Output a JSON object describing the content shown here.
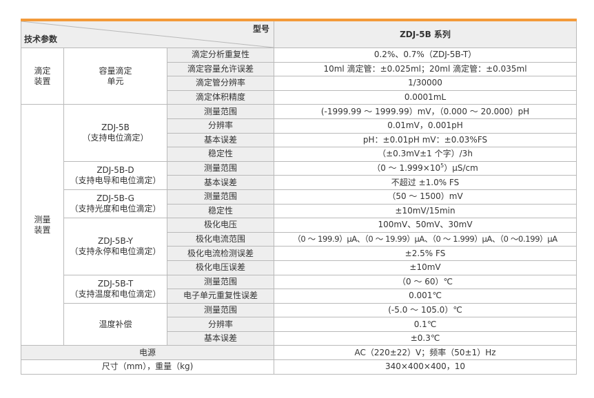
{
  "header": {
    "corner_model_label": "型号",
    "corner_param_label": "技术参数",
    "series_label": "ZDJ-5B 系列",
    "accent_color": "#f39a3a"
  },
  "sections": {
    "titration": {
      "device_line1": "滴定",
      "device_line2": "装置",
      "unit_line1": "容量滴定",
      "unit_line2": "单元",
      "rows": [
        {
          "param": "滴定分析重复性",
          "value": "0.2%、0.7%（ZDJ-5B-T）"
        },
        {
          "param": "滴定容量允许误差",
          "value": "10ml 滴定管：±0.025ml；20ml 滴定管：±0.035ml"
        },
        {
          "param": "滴定管分辨率",
          "value": "1/30000"
        },
        {
          "param": "滴定体积精度",
          "value": "0.0001mL"
        }
      ]
    },
    "measurement": {
      "device_line1": "测量",
      "device_line2": "装置",
      "zdj5b": {
        "name": "ZDJ-5B",
        "desc": "（支持电位滴定）",
        "rows": [
          {
            "param": "测量范围",
            "value": "(-1999.99 ～ 1999.99）mV，（0.000 ～ 20.000）pH"
          },
          {
            "param": "分辨率",
            "value": "0.01mV，0.001pH"
          },
          {
            "param": "基本误差",
            "value": "pH：±0.01pH   mV：±0.03%FS"
          },
          {
            "param": "稳定性",
            "value": "（±0.3mV±1 个字）/3h"
          }
        ]
      },
      "zdj5bd": {
        "name": "ZDJ-5B-D",
        "desc": "（支持电导和电位滴定）",
        "rows": [
          {
            "param": "测量范围",
            "value_pre": "（0 ～ 1.999×10",
            "value_sup": "5",
            "value_post": "）μS/cm"
          },
          {
            "param": "基本误差",
            "value": "不超过 ±1.0% FS"
          }
        ]
      },
      "zdj5bg": {
        "name": "ZDJ-5B-G",
        "desc": "（支持光度和电位滴定）",
        "rows": [
          {
            "param": "测量范围",
            "value": "（50 ～ 1500）mV"
          },
          {
            "param": "稳定性",
            "value": "±10mV/15min"
          }
        ]
      },
      "zdj5by": {
        "name": "ZDJ-5B-Y",
        "desc": "（支持永停和电位滴定）",
        "rows": [
          {
            "param": "极化电压",
            "value": "100mV、50mV、30mV"
          },
          {
            "param": "极化电流范围",
            "value": "（0 ～ 199.9）μA、（0 ～ 19.99）μA、（0 ～ 1.999）μA、（0 ～0.199）μA"
          },
          {
            "param": "极化电流检测误差",
            "value": "±2.5% FS"
          },
          {
            "param": "极化电压误差",
            "value": "±10mV"
          }
        ]
      },
      "zdj5bt": {
        "name": "ZDJ-5B-T",
        "desc": "（支持温度和电位滴定）",
        "rows": [
          {
            "param": "测量范围",
            "value": "（0 ～ 60）℃"
          },
          {
            "param": "电子单元重复性误差",
            "value": "0.001℃"
          }
        ]
      },
      "temp_comp": {
        "name": "温度补偿",
        "rows": [
          {
            "param": "测量范围",
            "value": "(-5.0 ～ 105.0）℃"
          },
          {
            "param": "分辨率",
            "value": "0.1℃"
          },
          {
            "param": "基本误差",
            "value": "±0.3℃"
          }
        ]
      }
    },
    "power": {
      "label": "电源",
      "value": "AC（220±22）V；频率（50±1）Hz"
    },
    "size": {
      "label": "尺寸（mm），重量（kg)",
      "value": "340×400×400，10"
    }
  }
}
